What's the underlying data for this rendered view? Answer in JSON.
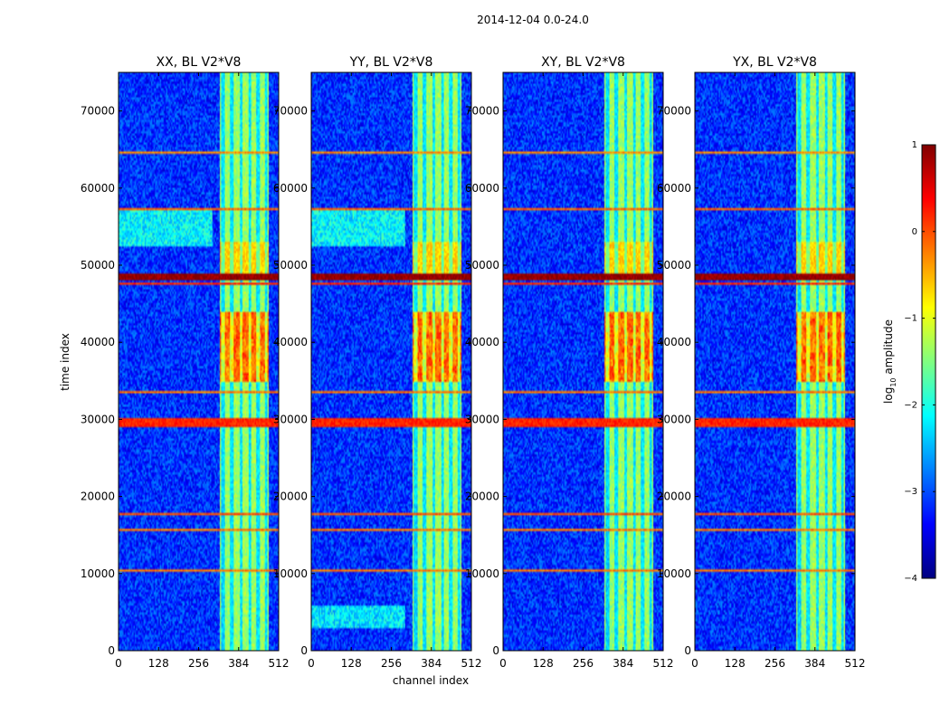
{
  "figure": {
    "suptitle": "2014-12-04 0.0-24.0"
  },
  "chart_data": {
    "type": "heatmap",
    "suptitle": "2014-12-04 0.0-24.0",
    "xlabel": "channel index",
    "ylabel": "time index",
    "xlim": [
      0,
      512
    ],
    "ylim": [
      0,
      75000
    ],
    "xticks": [
      0,
      128,
      256,
      384,
      512
    ],
    "yticks": [
      0,
      10000,
      20000,
      30000,
      40000,
      50000,
      60000,
      70000
    ],
    "panels": [
      {
        "title": "XX, BL V2*V8",
        "noise": 1
      },
      {
        "title": "YY, BL V2*V8",
        "noise": 2
      },
      {
        "title": "XY, BL V2*V8",
        "noise": 3
      },
      {
        "title": "YX, BL V2*V8",
        "noise": 4
      }
    ],
    "colorbar": {
      "label_main": "log",
      "label_sub": "10",
      "label_rest": " amplitude",
      "range": [
        -4,
        1
      ],
      "ticks": [
        -4,
        -3,
        -2,
        -1,
        0,
        1
      ],
      "tick_labels": [
        "−4",
        "−3",
        "−2",
        "−1",
        "0",
        "1"
      ],
      "colormap": "jet"
    },
    "bright_band_channels": [
      325,
      480
    ],
    "hot_band_time": [
      35000,
      44000
    ],
    "flagged_rows": [
      {
        "t": 29600,
        "width": 500,
        "value": 0.2
      },
      {
        "t": 48500,
        "width": 400,
        "value": 0.9
      },
      {
        "t": 47600,
        "width": 150,
        "value": 0.2
      },
      {
        "t": 57300,
        "width": 150,
        "value": -0.1
      },
      {
        "t": 17800,
        "width": 150,
        "value": 0.0
      },
      {
        "t": 15600,
        "width": 120,
        "value": -0.2
      },
      {
        "t": 10500,
        "width": 120,
        "value": -0.2
      },
      {
        "t": 33500,
        "width": 120,
        "value": -0.2
      },
      {
        "t": 64500,
        "width": 120,
        "value": -0.3
      }
    ]
  }
}
